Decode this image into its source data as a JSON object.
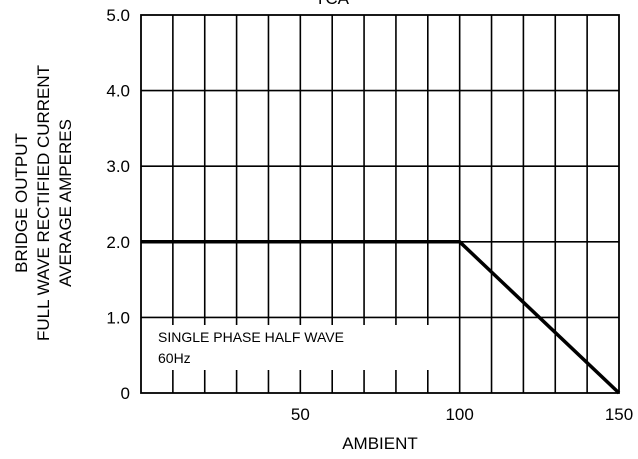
{
  "chart_data": {
    "type": "line",
    "title": "TCA",
    "xlabel": "AMBIENT",
    "ylabel_lines": [
      "BRIDGE OUTPUT",
      "FULL WAVE RECTIFIED CURRENT",
      "AVERAGE AMPERES"
    ],
    "xlim": [
      0,
      150
    ],
    "ylim": [
      0,
      5
    ],
    "x_tick_labels": [
      {
        "value": 50,
        "label": "50"
      },
      {
        "value": 100,
        "label": "100"
      },
      {
        "value": 150,
        "label": "150"
      }
    ],
    "y_tick_labels": [
      {
        "value": 0,
        "label": "0"
      },
      {
        "value": 1,
        "label": "1.0"
      },
      {
        "value": 2,
        "label": "2.0"
      },
      {
        "value": 3,
        "label": "3.0"
      },
      {
        "value": 4,
        "label": "4.0"
      },
      {
        "value": 5,
        "label": "5.0"
      }
    ],
    "grid": {
      "on": true,
      "x_step": 10,
      "y_step": 1
    },
    "series": [
      {
        "x": [
          0,
          100,
          150
        ],
        "y": [
          2.0,
          2.0,
          0
        ]
      }
    ],
    "annotation_lines": [
      "SINGLE PHASE HALF WAVE",
      "60Hz"
    ],
    "colors": {
      "line": "#000000",
      "grid": "#000000",
      "background": "#ffffff"
    }
  }
}
